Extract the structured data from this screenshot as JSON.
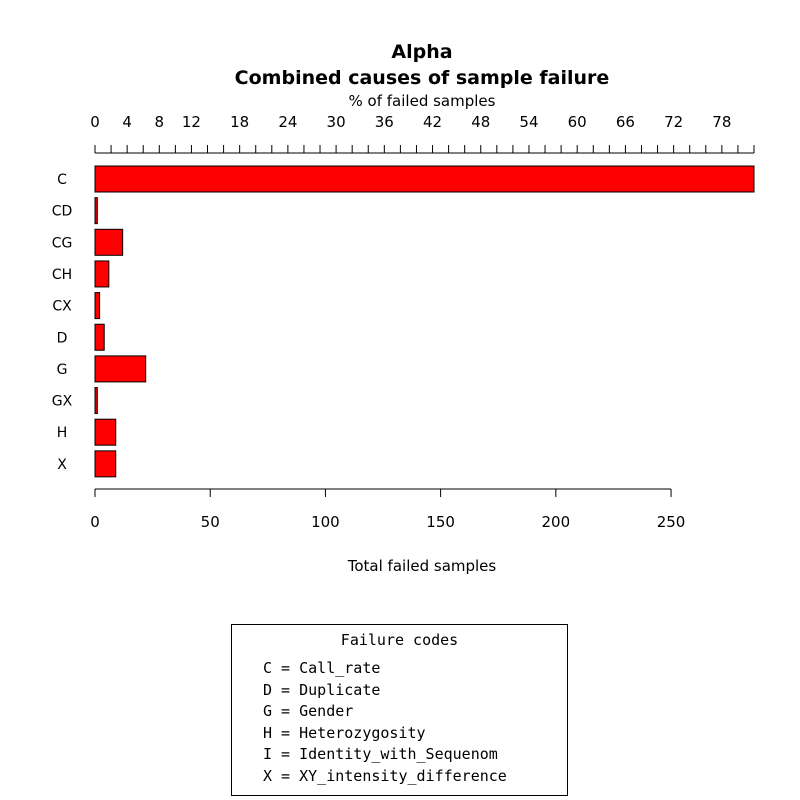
{
  "chart_data": {
    "type": "bar",
    "orientation": "horizontal",
    "title": "Alpha",
    "subtitle": "Combined causes of sample failure",
    "xlabel": "Total failed samples",
    "x2label": "% of failed samples",
    "ylabel": "",
    "categories": [
      "C",
      "CD",
      "CG",
      "CH",
      "CX",
      "D",
      "G",
      "GX",
      "H",
      "X"
    ],
    "values": [
      286,
      1,
      12,
      6,
      2,
      4,
      22,
      1,
      9,
      9
    ],
    "xlim": [
      0,
      286
    ],
    "x_ticks": [
      0,
      50,
      100,
      150,
      200,
      250
    ],
    "x2_ticks": [
      0,
      4,
      8,
      12,
      18,
      24,
      30,
      36,
      42,
      48,
      54,
      60,
      66,
      72,
      78
    ],
    "x2_range_percent": [
      0,
      82
    ],
    "grid": false,
    "colors": {
      "bar_fill": "#ff0000",
      "bar_stroke": "#000000"
    }
  },
  "legend": {
    "title": "Failure codes",
    "placement": "bottom",
    "entries": [
      "C = Call_rate",
      "D = Duplicate",
      "G = Gender",
      "H = Heterozygosity",
      "I = Identity_with_Sequenom",
      "X = XY_intensity_difference"
    ]
  }
}
